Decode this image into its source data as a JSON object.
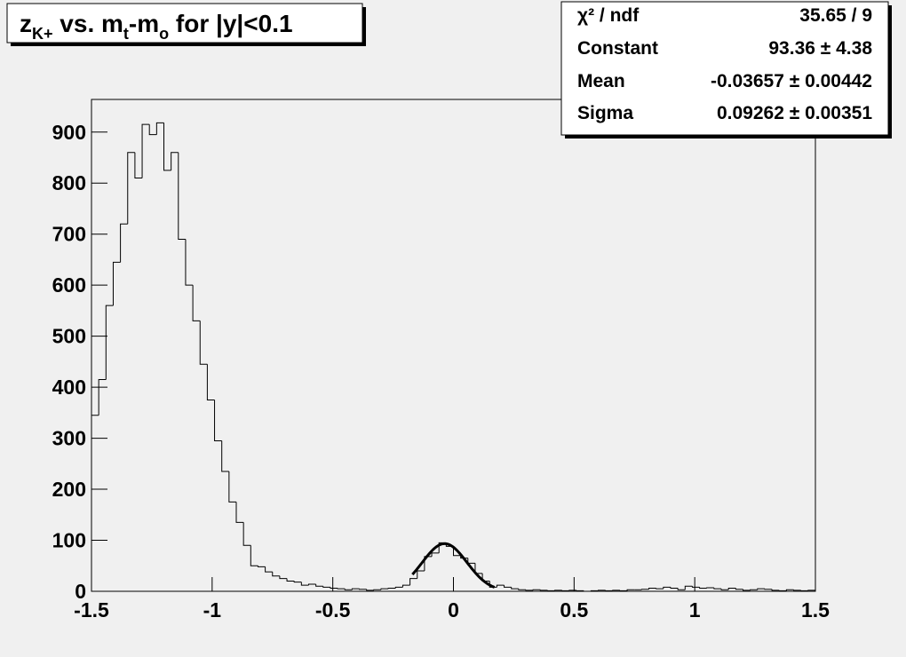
{
  "chart_data": {
    "type": "histogram",
    "title": [
      "z",
      "K+",
      " vs. m",
      "t",
      "-m",
      "o",
      " for |y|<0.1"
    ],
    "bins": [
      -1.5,
      -1.47,
      -1.44,
      -1.41,
      -1.38,
      -1.35,
      -1.32,
      -1.29,
      -1.26,
      -1.23,
      -1.2,
      -1.17,
      -1.14,
      -1.11,
      -1.08,
      -1.05,
      -1.02,
      -0.99,
      -0.96,
      -0.93,
      -0.9,
      -0.87,
      -0.84,
      -0.81,
      -0.78,
      -0.75,
      -0.72,
      -0.69,
      -0.66,
      -0.63,
      -0.6,
      -0.57,
      -0.54,
      -0.51,
      -0.48,
      -0.45,
      -0.42,
      -0.39,
      -0.36,
      -0.33,
      -0.3,
      -0.27,
      -0.24,
      -0.21,
      -0.18,
      -0.15,
      -0.12,
      -0.09,
      -0.06,
      -0.03,
      0,
      0.03,
      0.06,
      0.09,
      0.12,
      0.15,
      0.18,
      0.21,
      0.24,
      0.27,
      0.3,
      0.33,
      0.36,
      0.39,
      0.42,
      0.45,
      0.48,
      0.51,
      0.54,
      0.57,
      0.6,
      0.63,
      0.66,
      0.69,
      0.72,
      0.75,
      0.78,
      0.81,
      0.84,
      0.87,
      0.9,
      0.93,
      0.96,
      0.99,
      1.02,
      1.05,
      1.08,
      1.11,
      1.14,
      1.17,
      1.2,
      1.23,
      1.26,
      1.29,
      1.32,
      1.35,
      1.38,
      1.41,
      1.44,
      1.47,
      1.5
    ],
    "values": [
      345,
      415,
      560,
      645,
      720,
      860,
      810,
      915,
      895,
      918,
      825,
      860,
      690,
      600,
      530,
      445,
      375,
      295,
      235,
      175,
      135,
      90,
      50,
      48,
      38,
      30,
      25,
      20,
      18,
      12,
      14,
      10,
      8,
      6,
      5,
      3,
      5,
      4,
      2,
      3,
      5,
      6,
      8,
      12,
      25,
      40,
      68,
      75,
      95,
      88,
      70,
      65,
      55,
      35,
      20,
      8,
      12,
      8,
      5,
      3,
      2,
      3,
      2,
      1,
      2,
      1,
      2,
      1,
      0,
      1,
      2,
      1,
      2,
      1,
      3,
      3,
      4,
      6,
      5,
      8,
      6,
      3,
      10,
      8,
      6,
      7,
      5,
      3,
      6,
      4,
      2,
      3,
      5,
      4,
      2,
      1,
      3,
      2,
      1,
      2
    ],
    "color": "#000000",
    "fit_color": "#000000",
    "fit_range": [
      -0.17,
      0.17
    ],
    "xlim": [
      -1.5,
      1.5
    ],
    "xticks": [
      -1.5,
      -1,
      -0.5,
      0,
      0.5,
      1,
      1.5
    ],
    "ylim": [
      0,
      964
    ],
    "yticks": [
      0,
      100,
      200,
      300,
      400,
      500,
      600,
      700,
      800,
      900
    ],
    "stats": [
      {
        "label": "χ² / ndf",
        "value_label": "35.65 / 9"
      },
      {
        "label": "Constant",
        "value_label": "93.36 ± 4.38",
        "value": 93.36,
        "error": 4.38
      },
      {
        "label": "Mean",
        "value_label": "-0.03657 ± 0.00442",
        "value": -0.03657,
        "error": 0.00442
      },
      {
        "label": "Sigma",
        "value_label": "0.09262 ± 0.00351",
        "value": 0.09262,
        "error": 0.00351
      }
    ]
  }
}
